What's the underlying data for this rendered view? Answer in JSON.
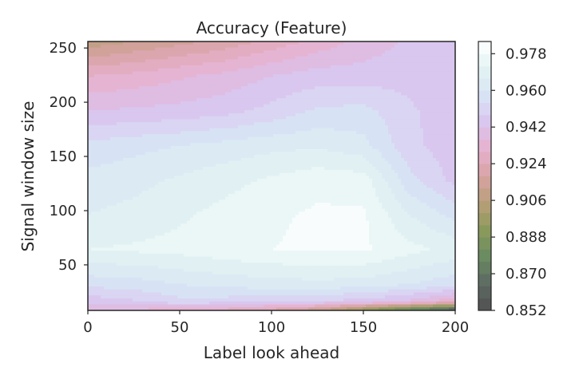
{
  "chart_data": {
    "type": "contour",
    "title": "Accuracy (Feature)",
    "xlabel": "Label look ahead",
    "ylabel": "Signal window size",
    "xlim": [
      0,
      200
    ],
    "ylim": [
      8,
      256
    ],
    "x_ticks": [
      "0",
      "50",
      "100",
      "150",
      "200"
    ],
    "x_tick_values": [
      0,
      50,
      100,
      150,
      200
    ],
    "y_ticks": [
      "50",
      "100",
      "150",
      "200",
      "250"
    ],
    "y_tick_values": [
      50,
      100,
      150,
      200,
      250
    ],
    "x": [
      0,
      25,
      50,
      75,
      100,
      125,
      150,
      175,
      200
    ],
    "y": [
      8,
      16,
      32,
      64,
      96,
      128,
      160,
      192,
      224,
      256
    ],
    "z": [
      [
        0.938,
        0.935,
        0.93,
        0.926,
        0.92,
        0.91,
        0.89,
        0.87,
        0.855
      ],
      [
        0.944,
        0.947,
        0.952,
        0.951,
        0.95,
        0.948,
        0.945,
        0.94,
        0.93
      ],
      [
        0.956,
        0.957,
        0.96,
        0.962,
        0.963,
        0.964,
        0.963,
        0.96,
        0.956
      ],
      [
        0.972,
        0.973,
        0.974,
        0.976,
        0.978,
        0.979,
        0.979,
        0.974,
        0.97
      ],
      [
        0.966,
        0.968,
        0.971,
        0.974,
        0.977,
        0.979,
        0.979,
        0.966,
        0.958
      ],
      [
        0.962,
        0.964,
        0.967,
        0.97,
        0.973,
        0.976,
        0.975,
        0.956,
        0.946
      ],
      [
        0.956,
        0.958,
        0.96,
        0.962,
        0.964,
        0.965,
        0.962,
        0.95,
        0.944
      ],
      [
        0.942,
        0.943,
        0.944,
        0.946,
        0.95,
        0.955,
        0.956,
        0.949,
        0.944
      ],
      [
        0.93,
        0.932,
        0.935,
        0.938,
        0.942,
        0.945,
        0.945,
        0.946,
        0.945
      ],
      [
        0.908,
        0.912,
        0.916,
        0.92,
        0.926,
        0.932,
        0.938,
        0.943,
        0.945
      ]
    ],
    "colorbar": {
      "ticks": [
        "0.852",
        "0.870",
        "0.888",
        "0.906",
        "0.924",
        "0.942",
        "0.960",
        "0.978"
      ],
      "tick_values": [
        0.852,
        0.87,
        0.888,
        0.906,
        0.924,
        0.942,
        0.96,
        0.978
      ],
      "min": 0.852,
      "max": 0.984,
      "levels": 22
    },
    "colormap": [
      "#505050",
      "#5d6a63",
      "#6a8a60",
      "#8a9a5c",
      "#b89f78",
      "#d7a3a3",
      "#e8b1cf",
      "#d9c6ef",
      "#d8e3f5",
      "#e2f3f3",
      "#ffffff"
    ],
    "grid": false,
    "legend": "none"
  }
}
